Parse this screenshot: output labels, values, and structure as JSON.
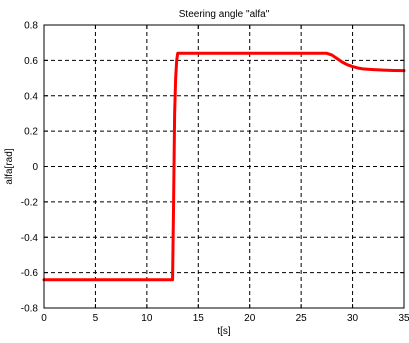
{
  "chart_data": {
    "type": "line",
    "title": "Steering angle \"alfa\"",
    "xlabel": "t[s]",
    "ylabel": "alfa[rad]",
    "xlim": [
      0,
      35
    ],
    "ylim": [
      -0.8,
      0.8
    ],
    "xticks": [
      0,
      5,
      10,
      15,
      20,
      25,
      30,
      35
    ],
    "yticks": [
      -0.8,
      -0.6,
      -0.4,
      -0.2,
      0,
      0.2,
      0.4,
      0.6,
      0.8
    ],
    "xtick_labels": [
      "0",
      "5",
      "10",
      "15",
      "20",
      "25",
      "30",
      "35"
    ],
    "ytick_labels": [
      "-0.8",
      "-0.6",
      "-0.4",
      "-0.2",
      "0",
      "0.2",
      "0.4",
      "0.6",
      "0.8"
    ],
    "grid": true,
    "grid_style": "dashed",
    "series": [
      {
        "color": "#ff0000",
        "x": [
          0,
          12.5,
          12.6,
          12.7,
          12.8,
          12.9,
          13.0,
          27.5,
          28.0,
          28.5,
          29.0,
          29.5,
          30.0,
          30.5,
          31.0,
          32.0,
          33.0,
          34.0,
          35.0
        ],
        "y": [
          -0.64,
          -0.64,
          -0.2,
          0.3,
          0.5,
          0.6,
          0.64,
          0.64,
          0.63,
          0.61,
          0.59,
          0.575,
          0.565,
          0.557,
          0.552,
          0.548,
          0.545,
          0.543,
          0.542
        ]
      }
    ]
  }
}
